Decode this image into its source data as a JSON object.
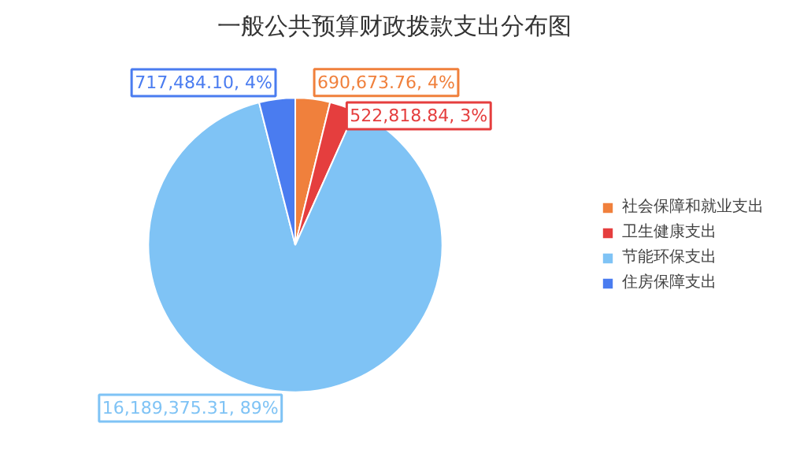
{
  "chart_data": {
    "type": "pie",
    "title": "一般公共预算财政拨款支出分布图",
    "categories": [
      "社会保障和就业支出",
      "卫生健康支出",
      "节能环保支出",
      "住房保障支出"
    ],
    "values": [
      690673.76,
      522818.84,
      16189375.31,
      717484.1
    ],
    "colors": [
      "#f0803c",
      "#e53e3e",
      "#7fc3f5",
      "#4a7cf0"
    ],
    "value_labels": [
      "690,673.76, 4%",
      "522,818.84, 3%",
      "16,189,375.31, 89%",
      "717,484.10, 4%"
    ],
    "legend": "right"
  }
}
